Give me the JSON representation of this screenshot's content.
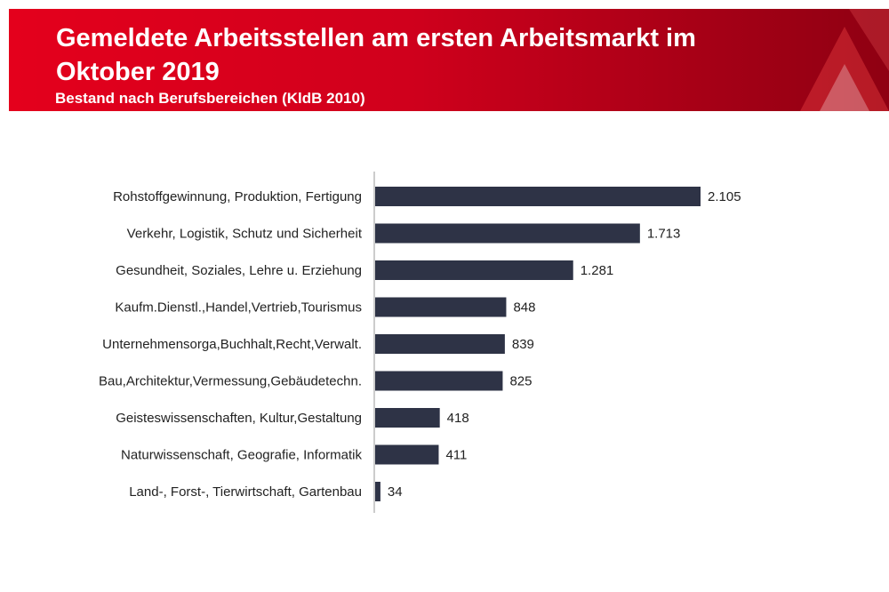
{
  "header": {
    "title": "Gemeldete Arbeitsstellen am ersten Arbeitsmarkt im Oktober 2019",
    "subtitle": "Bestand nach Berufsbereichen (KldB 2010)"
  },
  "colors": {
    "header_red": "#e4001c",
    "bar": "#2e3346",
    "text": "#222222"
  },
  "icons": {
    "logo": "arbeitsagentur-logo-icon"
  },
  "chart_data": {
    "type": "bar",
    "orientation": "horizontal",
    "categories": [
      "Rohstoffgewinnung, Produktion, Fertigung",
      "Verkehr, Logistik, Schutz und Sicherheit",
      "Gesundheit, Soziales, Lehre u. Erziehung",
      "Kaufm.Dienstl.,Handel,Vertrieb,Tourismus",
      "Unternehmensorga,Buchhalt,Recht,Verwalt.",
      "Bau,Architektur,Vermessung,Gebäudetechn.",
      "Geisteswissenschaften, Kultur,Gestaltung",
      "Naturwissenschaft, Geografie, Informatik",
      "Land-, Forst-, Tierwirtschaft, Gartenbau"
    ],
    "values": [
      2105,
      1713,
      1281,
      848,
      839,
      825,
      418,
      411,
      34
    ],
    "value_labels": [
      "2.105",
      "1.713",
      "1.281",
      "848",
      "839",
      "825",
      "418",
      "411",
      "34"
    ],
    "xlim": [
      0,
      2105
    ],
    "grid": false,
    "legend": "none"
  }
}
